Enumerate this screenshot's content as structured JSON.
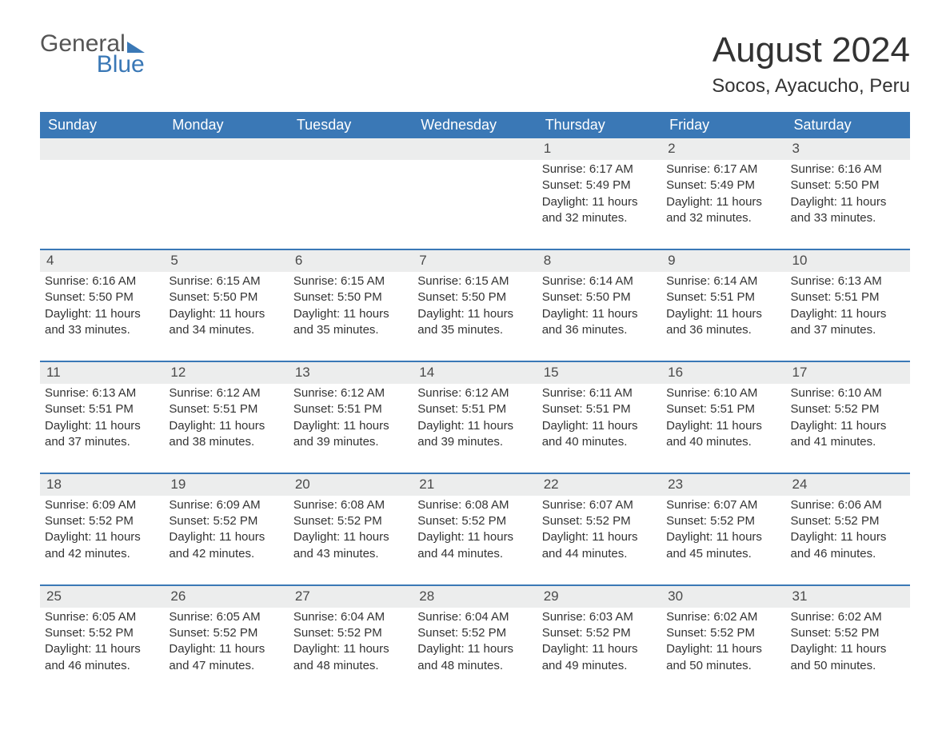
{
  "logo": {
    "word1": "General",
    "word2": "Blue"
  },
  "title": "August 2024",
  "subtitle": "Socos, Ayacucho, Peru",
  "colors": {
    "header_bg": "#3a78b6",
    "header_text": "#ffffff",
    "daynum_bg": "#eceded",
    "row_divider": "#3a78b6",
    "body_text": "#333333",
    "page_bg": "#ffffff"
  },
  "typography": {
    "title_fontsize": 44,
    "subtitle_fontsize": 24,
    "header_fontsize": 18,
    "cell_fontsize": 15,
    "daynum_fontsize": 17
  },
  "layout": {
    "columns": 7,
    "rows": 5,
    "leading_blanks": 4
  },
  "weekdays": [
    "Sunday",
    "Monday",
    "Tuesday",
    "Wednesday",
    "Thursday",
    "Friday",
    "Saturday"
  ],
  "days": [
    {
      "n": "1",
      "sunrise": "6:17 AM",
      "sunset": "5:49 PM",
      "daylight": "11 hours and 32 minutes."
    },
    {
      "n": "2",
      "sunrise": "6:17 AM",
      "sunset": "5:49 PM",
      "daylight": "11 hours and 32 minutes."
    },
    {
      "n": "3",
      "sunrise": "6:16 AM",
      "sunset": "5:50 PM",
      "daylight": "11 hours and 33 minutes."
    },
    {
      "n": "4",
      "sunrise": "6:16 AM",
      "sunset": "5:50 PM",
      "daylight": "11 hours and 33 minutes."
    },
    {
      "n": "5",
      "sunrise": "6:15 AM",
      "sunset": "5:50 PM",
      "daylight": "11 hours and 34 minutes."
    },
    {
      "n": "6",
      "sunrise": "6:15 AM",
      "sunset": "5:50 PM",
      "daylight": "11 hours and 35 minutes."
    },
    {
      "n": "7",
      "sunrise": "6:15 AM",
      "sunset": "5:50 PM",
      "daylight": "11 hours and 35 minutes."
    },
    {
      "n": "8",
      "sunrise": "6:14 AM",
      "sunset": "5:50 PM",
      "daylight": "11 hours and 36 minutes."
    },
    {
      "n": "9",
      "sunrise": "6:14 AM",
      "sunset": "5:51 PM",
      "daylight": "11 hours and 36 minutes."
    },
    {
      "n": "10",
      "sunrise": "6:13 AM",
      "sunset": "5:51 PM",
      "daylight": "11 hours and 37 minutes."
    },
    {
      "n": "11",
      "sunrise": "6:13 AM",
      "sunset": "5:51 PM",
      "daylight": "11 hours and 37 minutes."
    },
    {
      "n": "12",
      "sunrise": "6:12 AM",
      "sunset": "5:51 PM",
      "daylight": "11 hours and 38 minutes."
    },
    {
      "n": "13",
      "sunrise": "6:12 AM",
      "sunset": "5:51 PM",
      "daylight": "11 hours and 39 minutes."
    },
    {
      "n": "14",
      "sunrise": "6:12 AM",
      "sunset": "5:51 PM",
      "daylight": "11 hours and 39 minutes."
    },
    {
      "n": "15",
      "sunrise": "6:11 AM",
      "sunset": "5:51 PM",
      "daylight": "11 hours and 40 minutes."
    },
    {
      "n": "16",
      "sunrise": "6:10 AM",
      "sunset": "5:51 PM",
      "daylight": "11 hours and 40 minutes."
    },
    {
      "n": "17",
      "sunrise": "6:10 AM",
      "sunset": "5:52 PM",
      "daylight": "11 hours and 41 minutes."
    },
    {
      "n": "18",
      "sunrise": "6:09 AM",
      "sunset": "5:52 PM",
      "daylight": "11 hours and 42 minutes."
    },
    {
      "n": "19",
      "sunrise": "6:09 AM",
      "sunset": "5:52 PM",
      "daylight": "11 hours and 42 minutes."
    },
    {
      "n": "20",
      "sunrise": "6:08 AM",
      "sunset": "5:52 PM",
      "daylight": "11 hours and 43 minutes."
    },
    {
      "n": "21",
      "sunrise": "6:08 AM",
      "sunset": "5:52 PM",
      "daylight": "11 hours and 44 minutes."
    },
    {
      "n": "22",
      "sunrise": "6:07 AM",
      "sunset": "5:52 PM",
      "daylight": "11 hours and 44 minutes."
    },
    {
      "n": "23",
      "sunrise": "6:07 AM",
      "sunset": "5:52 PM",
      "daylight": "11 hours and 45 minutes."
    },
    {
      "n": "24",
      "sunrise": "6:06 AM",
      "sunset": "5:52 PM",
      "daylight": "11 hours and 46 minutes."
    },
    {
      "n": "25",
      "sunrise": "6:05 AM",
      "sunset": "5:52 PM",
      "daylight": "11 hours and 46 minutes."
    },
    {
      "n": "26",
      "sunrise": "6:05 AM",
      "sunset": "5:52 PM",
      "daylight": "11 hours and 47 minutes."
    },
    {
      "n": "27",
      "sunrise": "6:04 AM",
      "sunset": "5:52 PM",
      "daylight": "11 hours and 48 minutes."
    },
    {
      "n": "28",
      "sunrise": "6:04 AM",
      "sunset": "5:52 PM",
      "daylight": "11 hours and 48 minutes."
    },
    {
      "n": "29",
      "sunrise": "6:03 AM",
      "sunset": "5:52 PM",
      "daylight": "11 hours and 49 minutes."
    },
    {
      "n": "30",
      "sunrise": "6:02 AM",
      "sunset": "5:52 PM",
      "daylight": "11 hours and 50 minutes."
    },
    {
      "n": "31",
      "sunrise": "6:02 AM",
      "sunset": "5:52 PM",
      "daylight": "11 hours and 50 minutes."
    }
  ],
  "labels": {
    "sunrise": "Sunrise: ",
    "sunset": "Sunset: ",
    "daylight": "Daylight: "
  }
}
